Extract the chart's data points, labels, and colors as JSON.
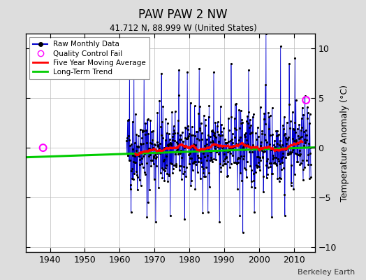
{
  "title": "PAW PAW 2 NW",
  "subtitle": "41.712 N, 88.999 W (United States)",
  "ylabel": "Temperature Anomaly (°C)",
  "credit": "Berkeley Earth",
  "xlim": [
    1933,
    2016
  ],
  "ylim": [
    -10.5,
    11.5
  ],
  "yticks": [
    -10,
    -5,
    0,
    5,
    10
  ],
  "xticks": [
    1940,
    1950,
    1960,
    1970,
    1980,
    1990,
    2000,
    2010
  ],
  "seed": 42,
  "raw_color": "#0000cc",
  "raw_fill_color": "#8888ff",
  "dot_color": "#000000",
  "ma_color": "#ff0000",
  "trend_color": "#00cc00",
  "qc_color": "#ff00ff",
  "background_color": "#dddddd",
  "plot_bg_color": "#ffffff",
  "grid_color": "#bbbbbb"
}
